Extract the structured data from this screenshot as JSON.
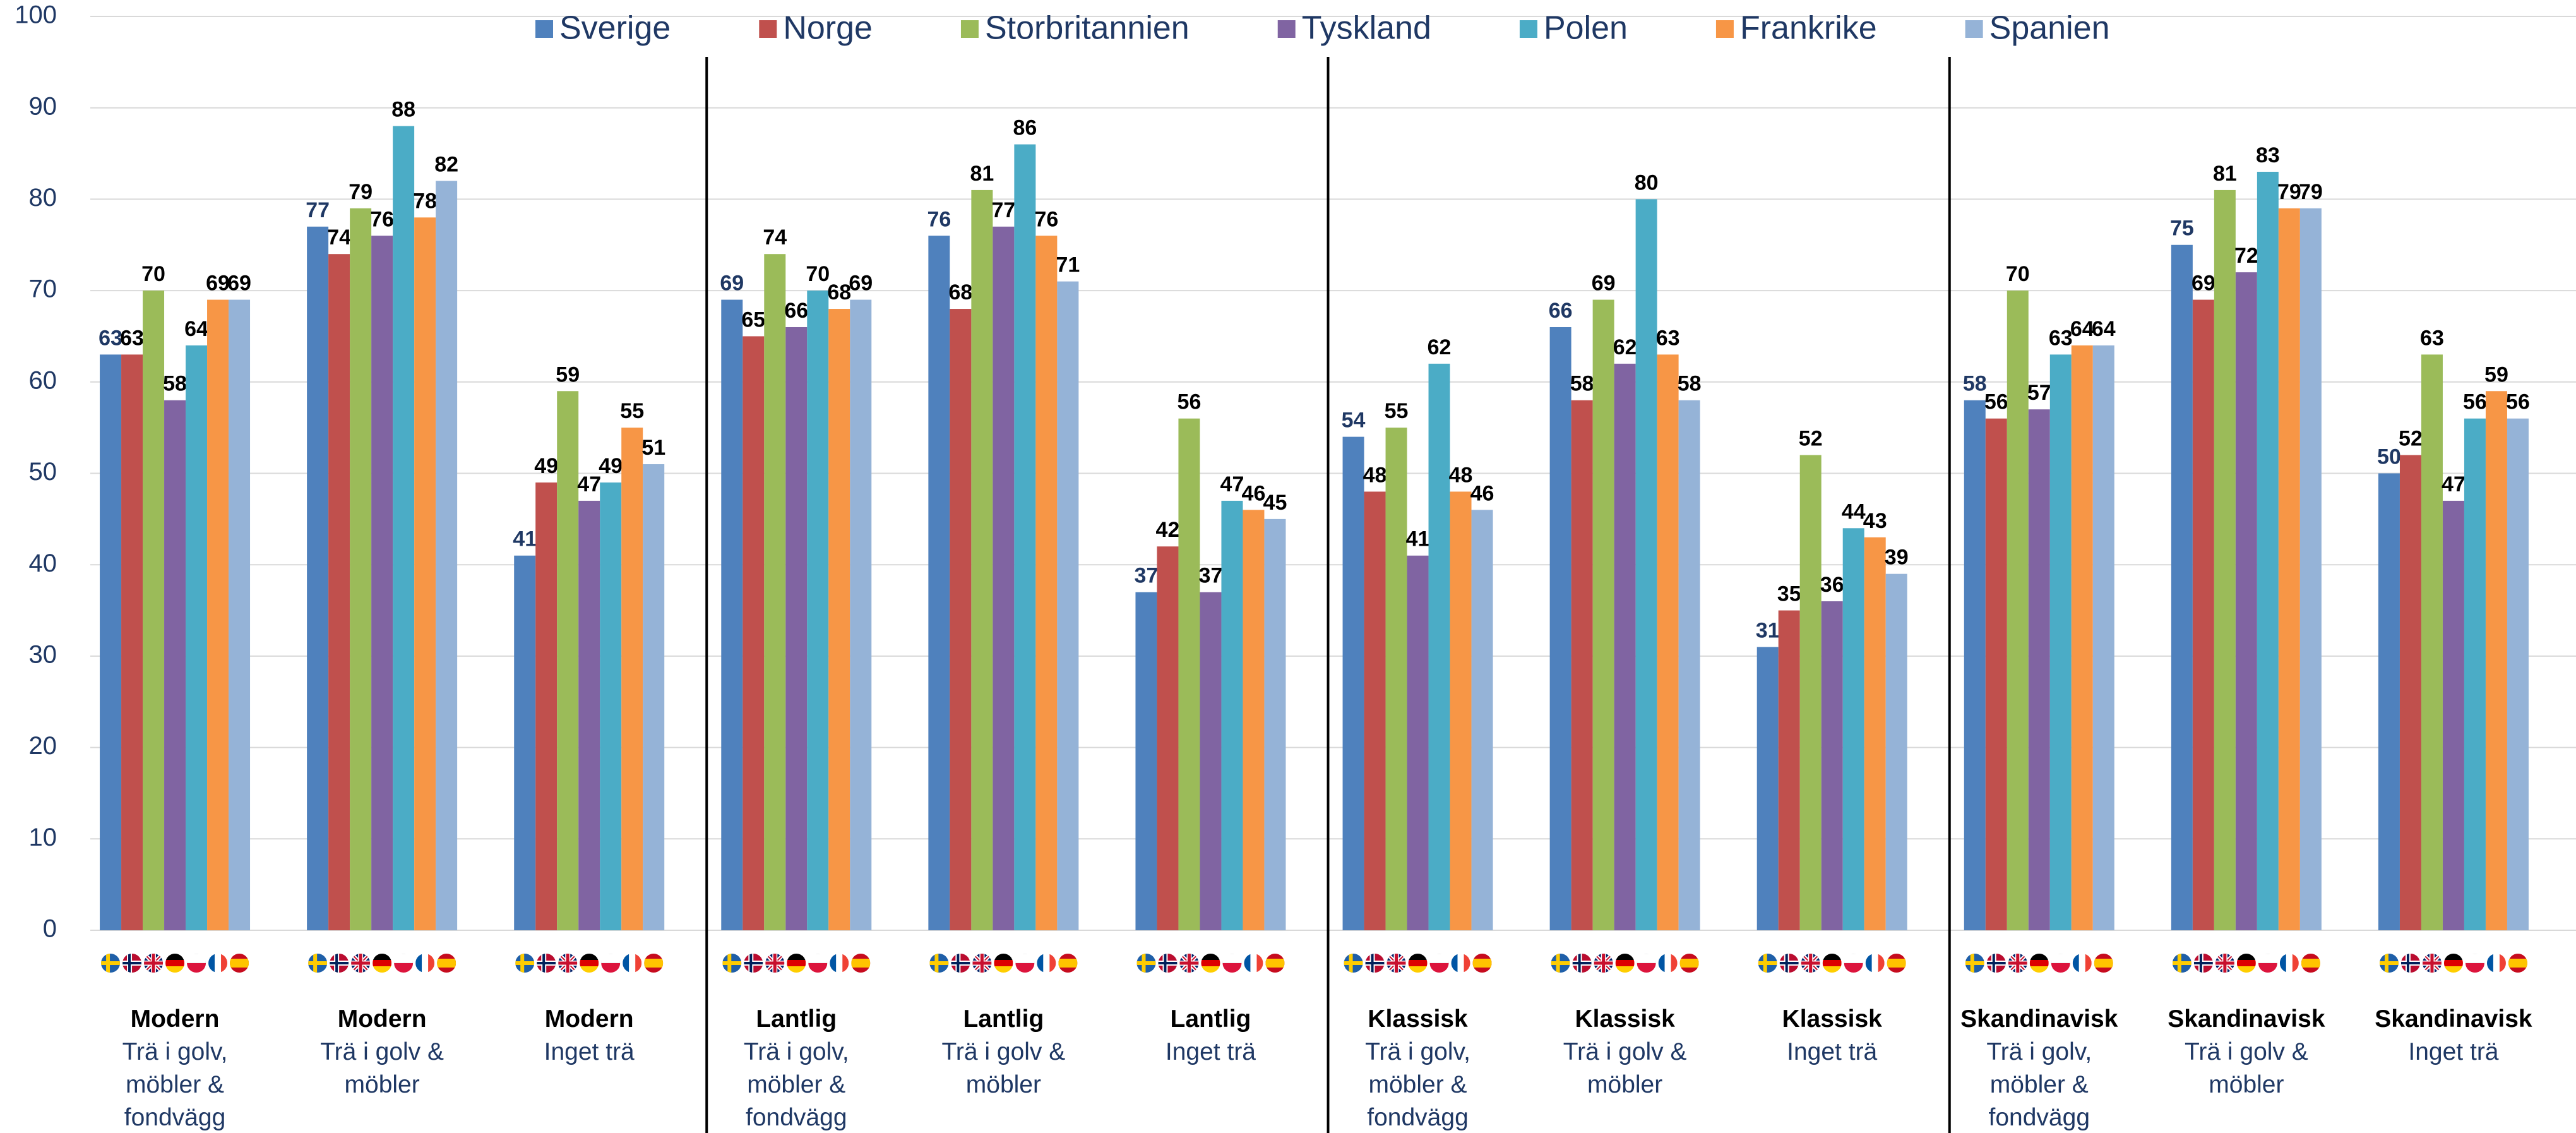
{
  "chart_data": {
    "type": "bar",
    "categories": [
      {
        "style": "Modern",
        "description": "Trä i golv, möbler & fondvägg"
      },
      {
        "style": "Modern",
        "description": "Trä i golv & möbler"
      },
      {
        "style": "Modern",
        "description": "Inget trä"
      },
      {
        "style": "Lantlig",
        "description": "Trä i golv, möbler & fondvägg"
      },
      {
        "style": "Lantlig",
        "description": "Trä i golv & möbler"
      },
      {
        "style": "Lantlig",
        "description": "Inget trä"
      },
      {
        "style": "Klassisk",
        "description": "Trä i golv, möbler & fondvägg"
      },
      {
        "style": "Klassisk",
        "description": "Trä i golv & möbler"
      },
      {
        "style": "Klassisk",
        "description": "Inget trä"
      },
      {
        "style": "Skandinavisk",
        "description": "Trä i golv, möbler & fondvägg"
      },
      {
        "style": "Skandinavisk",
        "description": "Trä i golv & möbler"
      },
      {
        "style": "Skandinavisk",
        "description": "Inget trä"
      }
    ],
    "series": [
      {
        "name": "Sverige",
        "color": "#4f81bd",
        "values": [
          63,
          77,
          41,
          69,
          76,
          37,
          54,
          66,
          31,
          58,
          75,
          50
        ]
      },
      {
        "name": "Norge",
        "color": "#c0504d",
        "values": [
          63,
          74,
          49,
          65,
          68,
          42,
          48,
          58,
          35,
          56,
          69,
          52
        ]
      },
      {
        "name": "Storbritannien",
        "color": "#9bbb59",
        "values": [
          70,
          79,
          59,
          74,
          81,
          56,
          55,
          69,
          52,
          70,
          81,
          63
        ]
      },
      {
        "name": "Tyskland",
        "color": "#8064a2",
        "values": [
          58,
          76,
          47,
          66,
          77,
          37,
          41,
          62,
          36,
          57,
          72,
          47
        ]
      },
      {
        "name": "Polen",
        "color": "#4bacc6",
        "values": [
          64,
          88,
          49,
          70,
          86,
          47,
          62,
          80,
          44,
          63,
          83,
          56
        ]
      },
      {
        "name": "Frankrike",
        "color": "#f79646",
        "values": [
          69,
          78,
          55,
          68,
          76,
          46,
          48,
          63,
          43,
          64,
          79,
          59
        ]
      },
      {
        "name": "Spanien",
        "color": "#95b3d7",
        "values": [
          69,
          82,
          51,
          69,
          71,
          45,
          46,
          58,
          39,
          64,
          79,
          56
        ]
      }
    ],
    "ylim": [
      0,
      100
    ],
    "yticks": [
      0,
      10,
      20,
      30,
      40,
      50,
      60,
      70,
      80,
      90,
      100
    ],
    "grid": true,
    "legend": "top"
  }
}
